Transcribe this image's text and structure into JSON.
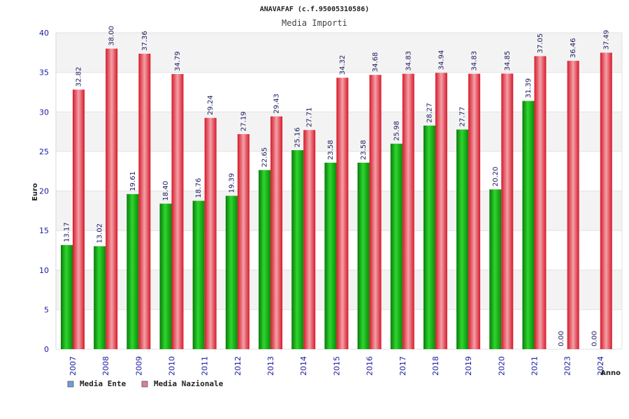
{
  "chart_data": {
    "type": "bar",
    "title": "ANAVAFAF (c.f.95005310586)",
    "subtitle": "Media Importi",
    "ylabel": "Euro",
    "xlabel": "Anno",
    "ylim": [
      0,
      40
    ],
    "yticks": [
      0,
      5,
      10,
      15,
      20,
      25,
      30,
      35,
      40
    ],
    "grid": true,
    "legend_position": "bottom-left",
    "categories": [
      "2007",
      "2008",
      "2009",
      "2010",
      "2011",
      "2012",
      "2013",
      "2014",
      "2015",
      "2016",
      "2017",
      "2018",
      "2019",
      "2020",
      "2021",
      "2023",
      "2024"
    ],
    "series": [
      {
        "name": "Media Ente",
        "color": "#22bb22",
        "legend_color": "#6a9ee0",
        "values": [
          13.17,
          13.02,
          19.61,
          18.4,
          18.76,
          19.39,
          22.65,
          25.16,
          23.58,
          23.58,
          25.98,
          28.27,
          27.77,
          20.2,
          31.39,
          0.0,
          0.0
        ],
        "labels": [
          "13.17",
          "13.02",
          "19.61",
          "18.40",
          "18.76",
          "19.39",
          "22.65",
          "25.16",
          "23.58",
          "23.58",
          "25.98",
          "28.27",
          "27.77",
          "20.20",
          "31.39",
          "0.00",
          "0.00"
        ]
      },
      {
        "name": "Media Nazionale",
        "color": "#ee2233",
        "legend_color": "#e07aa0",
        "values": [
          32.82,
          38.0,
          37.36,
          34.79,
          29.24,
          27.19,
          29.43,
          27.71,
          34.32,
          34.68,
          34.83,
          34.94,
          34.83,
          34.85,
          37.05,
          36.46,
          37.49
        ],
        "labels": [
          "32.82",
          "38.00",
          "37.36",
          "34.79",
          "29.24",
          "27.19",
          "29.43",
          "27.71",
          "34.32",
          "34.68",
          "34.83",
          "34.94",
          "34.83",
          "34.85",
          "37.05",
          "36.46",
          "37.49"
        ]
      }
    ]
  }
}
